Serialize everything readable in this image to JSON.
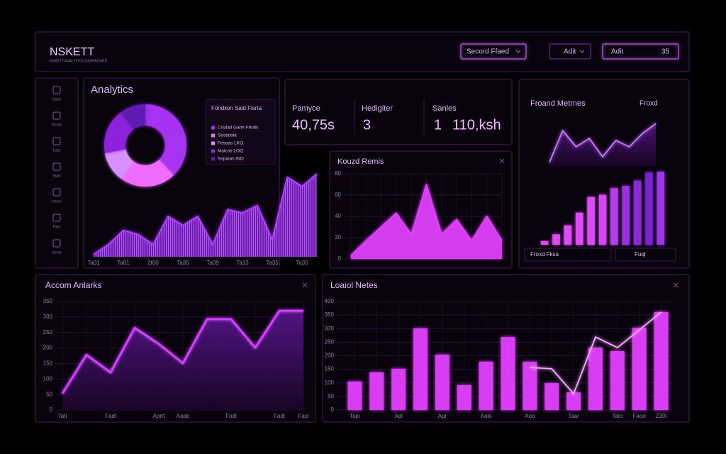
{
  "header": {
    "brand": "NSKETT",
    "tagline": "NSKETT ANALYTICS DASHBOARD",
    "dropdown": "Secord Ffaed",
    "menu": "Adit",
    "search": "Adit",
    "search_badge": "35"
  },
  "sidebar": {
    "items": [
      "Dash",
      "Trends",
      "Data",
      "Stats",
      "Users",
      "Files",
      "Setup"
    ]
  },
  "stats": {
    "items": [
      {
        "label": "Pamyce",
        "value": "40,75s"
      },
      {
        "label": "Hedigiter",
        "value": "3"
      },
      {
        "label": "Sanles",
        "count": "1",
        "value": "110,ksh"
      }
    ]
  },
  "metrics_panel": {
    "filter": "Froxd",
    "footer_left": "Froxd Fksa",
    "footer_right": "Fuql"
  },
  "chart_data": [
    {
      "type": "pie",
      "title": "Analytics",
      "legend_title": "Fondiion Sald Fisrta",
      "categories": [
        "Coulatl Gamt Fhoits",
        "Sostaloia",
        "Fesoas LKO",
        "Maicse LOI2",
        "Sopaias INO"
      ],
      "values": [
        38,
        22,
        12,
        18,
        10
      ],
      "colors": [
        "#a632f2",
        "#f06cff",
        "#d890ff",
        "#8e24dc",
        "#5e1bb0"
      ]
    },
    {
      "type": "area",
      "categories": [
        "Ta01",
        null,
        "Ta01",
        null,
        "2t00",
        null,
        "Ta35",
        null,
        "Ta09",
        null,
        "Ta13",
        null,
        "Ta35",
        null,
        "Ta30",
        null
      ],
      "values": [
        3,
        15,
        32,
        27,
        15,
        49,
        38,
        49,
        15,
        57,
        53,
        62,
        21,
        96,
        85,
        100
      ],
      "ylim": [
        0,
        100
      ],
      "color": "#b040ff"
    },
    {
      "type": "area",
      "title": "Kouzd Remis",
      "categories": [
        null,
        null,
        null,
        null,
        null,
        null,
        null,
        null,
        null,
        null,
        null
      ],
      "values": [
        3,
        17,
        30,
        43,
        23,
        70,
        23,
        37,
        17,
        40,
        17
      ],
      "ylim": [
        0,
        80
      ],
      "yticks": [
        0,
        20,
        40,
        60,
        80
      ],
      "grid": true,
      "color": "#e040fb"
    },
    {
      "type": "line",
      "title": "Froand Metrnes",
      "categories": [
        null,
        null,
        null,
        null,
        null,
        null,
        null,
        null,
        null
      ],
      "values": [
        9,
        73,
        40,
        57,
        20,
        53,
        40,
        67,
        87
      ],
      "ylim": [
        0,
        100
      ],
      "color": "#c878ff"
    },
    {
      "type": "bar",
      "categories": [
        null,
        null,
        null,
        null,
        null,
        null,
        null,
        null,
        null,
        null,
        null
      ],
      "values": [
        5,
        14,
        26,
        43,
        64,
        67,
        76,
        79,
        86,
        97,
        98
      ],
      "ylim": [
        0,
        100
      ],
      "colors": [
        "#e048f8",
        "#e048f8",
        "#e048f8",
        "#e048f8",
        "#e048f8",
        "#d844f6",
        "#b83cf0",
        "#9a30e0",
        "#8a2ad8",
        "#7a22d0",
        "#9d34ec"
      ]
    },
    {
      "type": "area",
      "title": "Accom Anlarks",
      "categories": [
        "Tati",
        null,
        "Fadl",
        null,
        "Aprtt",
        "Aade",
        null,
        "Fodl",
        null,
        "Fadt",
        "Fasi"
      ],
      "values": [
        53,
        178,
        121,
        265,
        213,
        151,
        293,
        293,
        201,
        320,
        320
      ],
      "ylim": [
        0,
        350
      ],
      "yticks": [
        0,
        50,
        100,
        150,
        200,
        250,
        300,
        350
      ],
      "grid": true,
      "color": "#d040ff"
    },
    {
      "type": "bar",
      "title": "Loaiol Netes",
      "categories": [
        "Tajo",
        null,
        "Adl",
        null,
        "Apr",
        null,
        "Aalo",
        null,
        "Aoo",
        null,
        "Taar",
        null,
        "Talo",
        "Faoo",
        "Z30i"
      ],
      "series": [
        {
          "type": "bar",
          "color": "#d83cf4",
          "values": [
            105,
            139,
            152,
            301,
            204,
            92,
            178,
            269,
            178,
            99,
            65,
            230,
            217,
            303,
            361
          ]
        },
        {
          "type": "line",
          "color": "#f4a8ff",
          "values": [
            null,
            null,
            null,
            null,
            null,
            null,
            null,
            null,
            157,
            152,
            60,
            269,
            230,
            295,
            361
          ]
        }
      ],
      "ylim": [
        0,
        400
      ],
      "yticks": [
        0,
        50,
        100,
        150,
        200,
        250,
        300,
        350,
        400
      ],
      "grid": true
    }
  ]
}
